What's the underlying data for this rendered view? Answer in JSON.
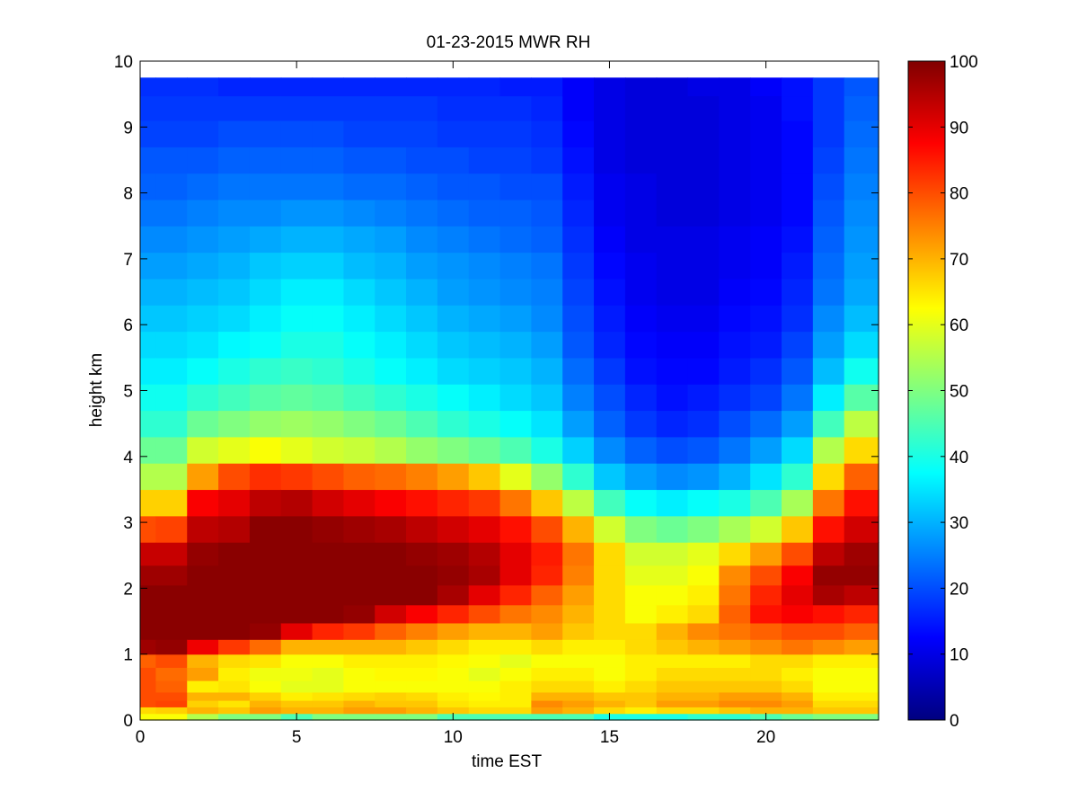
{
  "chart_data": {
    "type": "heatmap",
    "title": "01-23-2015 MWR RH",
    "xlabel": "time EST",
    "ylabel": "height km",
    "xlim": [
      0,
      23.6
    ],
    "ylim": [
      0,
      10
    ],
    "x_ticks": [
      0,
      5,
      10,
      15,
      20
    ],
    "y_ticks": [
      0,
      1,
      2,
      3,
      4,
      5,
      6,
      7,
      8,
      9,
      10
    ],
    "colorbar": {
      "colormap": "jet",
      "range": [
        0,
        100
      ],
      "ticks": [
        0,
        10,
        20,
        30,
        40,
        50,
        60,
        70,
        80,
        90,
        100
      ]
    },
    "data_extent": {
      "x": [
        0,
        23.6
      ],
      "y": [
        0,
        9.75
      ]
    },
    "time_hours": [
      0,
      1,
      2,
      3,
      4,
      5,
      6,
      7,
      8,
      9,
      10,
      11,
      12,
      13,
      14,
      15,
      16,
      17,
      18,
      19,
      20,
      21,
      22,
      23
    ],
    "height_km": [
      0.05,
      0.15,
      0.25,
      0.35,
      0.5,
      0.7,
      0.9,
      1.1,
      1.35,
      1.6,
      1.9,
      2.2,
      2.5,
      2.9,
      3.3,
      3.7,
      4.1,
      4.5,
      4.9,
      5.3,
      5.7,
      6.1,
      6.5,
      6.9,
      7.3,
      7.7,
      8.1,
      8.5,
      8.9,
      9.3,
      9.65
    ],
    "rh_percent": [
      [
        62,
        66,
        80,
        80,
        80,
        80,
        78,
        97,
        99,
        99,
        99,
        97,
        93,
        80,
        67,
        55,
        48,
        42,
        39,
        36,
        34,
        32,
        30,
        28,
        26,
        24,
        22,
        21,
        19,
        18,
        17
      ],
      [
        62,
        67,
        81,
        80,
        78,
        77,
        80,
        98,
        99,
        99,
        99,
        97,
        93,
        81,
        67,
        55,
        48,
        42,
        39,
        36,
        34,
        32,
        30,
        28,
        26,
        24,
        22,
        21,
        19,
        18,
        17
      ],
      [
        55,
        70,
        67,
        70,
        64,
        72,
        70,
        89,
        99,
        99,
        99,
        99,
        98,
        94,
        88,
        72,
        58,
        48,
        42,
        38,
        35,
        33,
        31,
        29,
        27,
        25,
        23,
        21,
        19,
        18,
        17
      ],
      [
        50,
        68,
        65,
        70,
        65,
        64,
        66,
        82,
        99,
        99,
        99,
        99,
        99,
        95,
        90,
        80,
        60,
        50,
        44,
        40,
        37,
        34,
        32,
        30,
        28,
        26,
        24,
        22,
        20,
        18,
        16
      ],
      [
        50,
        72,
        70,
        67,
        62,
        61,
        65,
        77,
        98,
        99,
        99,
        99,
        99,
        99,
        94,
        83,
        62,
        52,
        46,
        42,
        38,
        36,
        34,
        32,
        29,
        26,
        24,
        22,
        20,
        18,
        16
      ],
      [
        45,
        70,
        68,
        64,
        60,
        61,
        62,
        70,
        90,
        99,
        99,
        99,
        99,
        99,
        95,
        82,
        60,
        53,
        47,
        43,
        40,
        38,
        36,
        33,
        30,
        27,
        24,
        22,
        20,
        18,
        16
      ],
      [
        50,
        70,
        68,
        65,
        60,
        60,
        62,
        70,
        84,
        99,
        99,
        99,
        99,
        98,
        92,
        80,
        58,
        52,
        46,
        42,
        40,
        38,
        36,
        33,
        30,
        27,
        24,
        22,
        20,
        18,
        16
      ],
      [
        50,
        72,
        70,
        66,
        62,
        62,
        64,
        70,
        82,
        98,
        99,
        99,
        99,
        97,
        90,
        78,
        57,
        50,
        44,
        40,
        38,
        36,
        34,
        31,
        29,
        26,
        23,
        21,
        19,
        18,
        16
      ],
      [
        50,
        72,
        68,
        67,
        62,
        63,
        64,
        70,
        78,
        92,
        99,
        99,
        99,
        96,
        88,
        77,
        55,
        48,
        42,
        38,
        36,
        34,
        32,
        30,
        28,
        25,
        23,
        21,
        19,
        18,
        16
      ],
      [
        50,
        70,
        68,
        66,
        62,
        63,
        64,
        68,
        75,
        88,
        99,
        99,
        98,
        94,
        86,
        75,
        52,
        45,
        40,
        36,
        34,
        32,
        30,
        28,
        26,
        24,
        22,
        20,
        19,
        18,
        16
      ],
      [
        45,
        68,
        65,
        64,
        62,
        62,
        63,
        66,
        72,
        84,
        96,
        98,
        97,
        92,
        84,
        72,
        50,
        42,
        38,
        34,
        32,
        30,
        28,
        27,
        25,
        23,
        21,
        20,
        18,
        17,
        16
      ],
      [
        45,
        66,
        64,
        63,
        62,
        60,
        62,
        64,
        70,
        80,
        90,
        96,
        95,
        90,
        82,
        68,
        48,
        40,
        36,
        33,
        31,
        29,
        27,
        26,
        24,
        22,
        21,
        19,
        18,
        17,
        16
      ],
      [
        45,
        66,
        64,
        64,
        64,
        62,
        60,
        64,
        70,
        76,
        84,
        90,
        90,
        86,
        76,
        60,
        45,
        38,
        34,
        32,
        30,
        28,
        26,
        25,
        23,
        22,
        20,
        19,
        18,
        17,
        15
      ],
      [
        45,
        72,
        74,
        70,
        66,
        64,
        62,
        66,
        72,
        74,
        78,
        84,
        85,
        80,
        68,
        52,
        40,
        35,
        32,
        30,
        28,
        26,
        25,
        24,
        22,
        21,
        20,
        18,
        17,
        16,
        15
      ],
      [
        45,
        70,
        72,
        70,
        66,
        64,
        62,
        64,
        68,
        70,
        72,
        75,
        76,
        70,
        56,
        42,
        33,
        28,
        25,
        23,
        21,
        20,
        19,
        18,
        17,
        16,
        15,
        14,
        13,
        12,
        12
      ],
      [
        40,
        66,
        70,
        68,
        64,
        62,
        62,
        64,
        66,
        66,
        66,
        66,
        66,
        58,
        44,
        32,
        26,
        22,
        20,
        18,
        16,
        15,
        14,
        13,
        12,
        11,
        11,
        10,
        10,
        10,
        10
      ],
      [
        40,
        64,
        68,
        68,
        66,
        64,
        64,
        66,
        66,
        62,
        62,
        60,
        58,
        50,
        38,
        28,
        22,
        18,
        16,
        14,
        13,
        12,
        11,
        11,
        10,
        10,
        10,
        9,
        9,
        9,
        9
      ],
      [
        40,
        66,
        72,
        70,
        68,
        66,
        64,
        68,
        70,
        64,
        62,
        60,
        58,
        48,
        36,
        26,
        20,
        16,
        14,
        13,
        12,
        11,
        10,
        10,
        10,
        9,
        9,
        9,
        9,
        9,
        9
      ],
      [
        42,
        66,
        72,
        70,
        68,
        66,
        64,
        70,
        74,
        66,
        64,
        62,
        60,
        50,
        38,
        27,
        21,
        17,
        15,
        13,
        12,
        11,
        10,
        10,
        10,
        9,
        9,
        9,
        9,
        9,
        10
      ],
      [
        42,
        68,
        74,
        72,
        68,
        66,
        64,
        72,
        76,
        78,
        76,
        74,
        66,
        54,
        40,
        30,
        24,
        20,
        17,
        15,
        14,
        13,
        12,
        11,
        11,
        10,
        10,
        10,
        10,
        10,
        10
      ],
      [
        45,
        70,
        74,
        72,
        68,
        66,
        66,
        74,
        78,
        86,
        84,
        80,
        72,
        58,
        45,
        35,
        28,
        23,
        19,
        17,
        15,
        14,
        13,
        12,
        12,
        11,
        11,
        11,
        11,
        11,
        12
      ],
      [
        48,
        70,
        72,
        70,
        66,
        64,
        66,
        76,
        80,
        88,
        90,
        88,
        80,
        68,
        54,
        42,
        34,
        28,
        24,
        21,
        19,
        17,
        16,
        15,
        14,
        13,
        13,
        13,
        13,
        14,
        14
      ],
      [
        50,
        68,
        66,
        64,
        62,
        62,
        64,
        74,
        80,
        86,
        96,
        98,
        94,
        86,
        76,
        66,
        55,
        44,
        36,
        31,
        28,
        26,
        24,
        23,
        22,
        21,
        20,
        19,
        18,
        18,
        18
      ],
      [
        50,
        68,
        66,
        64,
        62,
        62,
        64,
        72,
        78,
        84,
        94,
        98,
        97,
        92,
        86,
        78,
        66,
        56,
        46,
        39,
        34,
        31,
        29,
        28,
        27,
        26,
        25,
        24,
        23,
        22,
        21
      ]
    ]
  }
}
